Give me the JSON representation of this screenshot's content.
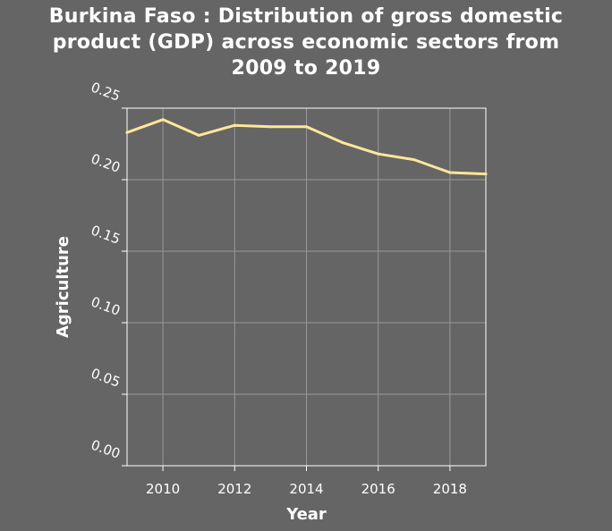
{
  "chart_data": {
    "type": "line",
    "title_lines": [
      "Burkina Faso : Distribution of gross domestic",
      "product (GDP) across economic sectors from",
      "2009 to 2019"
    ],
    "xlabel": "Year",
    "ylabel": "Agriculture",
    "xlim": [
      2009,
      2019
    ],
    "ylim": [
      0,
      0.25
    ],
    "x_ticks": [
      2010,
      2012,
      2014,
      2016,
      2018
    ],
    "y_ticks": [
      "0.00",
      "0.05",
      "0.10",
      "0.15",
      "0.20",
      "0.25"
    ],
    "grid": true,
    "series": [
      {
        "color": "#ffe699",
        "x": [
          2009,
          2010,
          2011,
          2012,
          2013,
          2014,
          2015,
          2016,
          2017,
          2018,
          2019
        ],
        "values": [
          0.233,
          0.242,
          0.231,
          0.238,
          0.237,
          0.237,
          0.226,
          0.218,
          0.214,
          0.205,
          0.204
        ]
      }
    ]
  }
}
